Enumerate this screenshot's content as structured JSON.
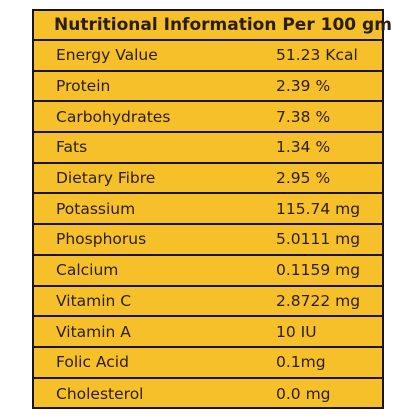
{
  "panel": {
    "title": "Nutritional Information Per 100 gm",
    "background_color": "#f6c02a",
    "border_color": "#1a1410"
  },
  "rows": [
    {
      "name": "Energy Value",
      "value": "51.23 Kcal"
    },
    {
      "name": "Protein",
      "value": "2.39 %"
    },
    {
      "name": "Carbohydrates",
      "value": "7.38 %"
    },
    {
      "name": "Fats",
      "value": "1.34 %"
    },
    {
      "name": "Dietary Fibre",
      "value": "2.95 %"
    },
    {
      "name": "Potassium",
      "value": "115.74 mg"
    },
    {
      "name": "Phosphorus",
      "value": "5.0111 mg"
    },
    {
      "name": "Calcium",
      "value": "0.1159 mg"
    },
    {
      "name": "Vitamin C",
      "value": "2.8722 mg"
    },
    {
      "name": "Vitamin A",
      "value": "10 IU"
    },
    {
      "name": "Folic Acid",
      "value": "0.1mg"
    },
    {
      "name": "Cholesterol",
      "value": "0.0 mg"
    }
  ]
}
